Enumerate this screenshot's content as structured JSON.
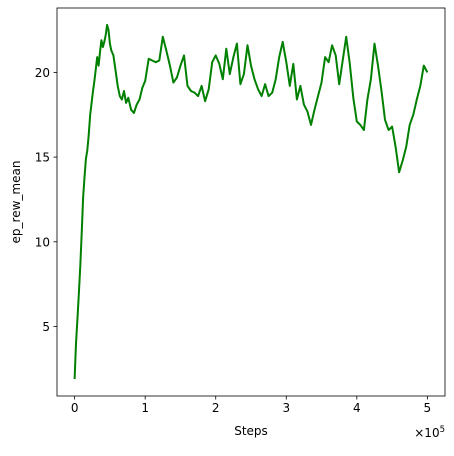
{
  "chart_data": {
    "type": "line",
    "title": "",
    "xlabel": "Steps",
    "ylabel": "ep_rew_mean",
    "x_multiplier_label": "×10",
    "x_multiplier_exp": "5",
    "xlim": [
      -0.25,
      5.25
    ],
    "ylim": [
      0.9,
      23.8
    ],
    "xticks": [
      0,
      1,
      2,
      3,
      4,
      5
    ],
    "xtick_labels": [
      "0",
      "1",
      "2",
      "3",
      "4",
      "5"
    ],
    "yticks": [
      5,
      10,
      15,
      20
    ],
    "ytick_labels": [
      "5",
      "10",
      "15",
      "20"
    ],
    "grid": false,
    "legend": "none",
    "series": [
      {
        "color": "#008000",
        "x": [
          0.0,
          0.02,
          0.04,
          0.06,
          0.08,
          0.1,
          0.12,
          0.14,
          0.16,
          0.18,
          0.2,
          0.22,
          0.24,
          0.26,
          0.28,
          0.3,
          0.32,
          0.34,
          0.36,
          0.38,
          0.4,
          0.42,
          0.44,
          0.46,
          0.48,
          0.5,
          0.52,
          0.55,
          0.58,
          0.61,
          0.64,
          0.67,
          0.7,
          0.73,
          0.76,
          0.8,
          0.84,
          0.88,
          0.92,
          0.96,
          1.0,
          1.05,
          1.1,
          1.15,
          1.2,
          1.25,
          1.3,
          1.35,
          1.4,
          1.45,
          1.5,
          1.55,
          1.6,
          1.65,
          1.7,
          1.75,
          1.8,
          1.85,
          1.9,
          1.95,
          2.0,
          2.05,
          2.1,
          2.15,
          2.2,
          2.25,
          2.3,
          2.35,
          2.4,
          2.45,
          2.5,
          2.55,
          2.6,
          2.65,
          2.7,
          2.75,
          2.8,
          2.85,
          2.9,
          2.95,
          3.0,
          3.05,
          3.1,
          3.15,
          3.2,
          3.25,
          3.3,
          3.35,
          3.4,
          3.45,
          3.5,
          3.55,
          3.6,
          3.65,
          3.7,
          3.75,
          3.8,
          3.85,
          3.9,
          3.95,
          4.0,
          4.05,
          4.1,
          4.15,
          4.2,
          4.25,
          4.3,
          4.35,
          4.4,
          4.45,
          4.5,
          4.55,
          4.6,
          4.65,
          4.7,
          4.75,
          4.8,
          4.85,
          4.9,
          4.95,
          5.0
        ],
        "y": [
          1.9,
          4.0,
          5.5,
          7.0,
          8.6,
          10.5,
          12.6,
          13.8,
          14.9,
          15.4,
          16.3,
          17.5,
          18.2,
          18.9,
          19.5,
          20.2,
          20.9,
          20.4,
          21.2,
          21.9,
          21.5,
          21.8,
          22.2,
          22.8,
          22.5,
          21.7,
          21.3,
          21.0,
          20.1,
          19.2,
          18.6,
          18.4,
          18.9,
          18.2,
          18.5,
          17.8,
          17.6,
          18.1,
          18.4,
          19.1,
          19.5,
          20.8,
          20.7,
          20.6,
          20.7,
          22.1,
          21.3,
          20.4,
          19.4,
          19.7,
          20.4,
          21.0,
          19.2,
          18.9,
          18.8,
          18.6,
          19.2,
          18.3,
          19.0,
          20.6,
          21.0,
          20.5,
          19.6,
          21.4,
          19.9,
          20.9,
          21.7,
          19.3,
          19.9,
          21.6,
          20.4,
          19.6,
          19.0,
          18.6,
          19.3,
          18.6,
          18.8,
          19.6,
          20.9,
          21.8,
          20.6,
          19.2,
          20.5,
          18.4,
          19.2,
          18.1,
          17.7,
          16.9,
          17.8,
          18.6,
          19.4,
          20.9,
          20.6,
          21.6,
          21.0,
          19.3,
          20.7,
          22.1,
          20.5,
          18.5,
          17.1,
          16.9,
          16.6,
          18.4,
          19.6,
          21.7,
          20.4,
          18.9,
          17.2,
          16.6,
          16.8,
          15.6,
          14.1,
          14.8,
          15.6,
          16.9,
          17.5,
          18.4,
          19.2,
          20.4,
          20.0
        ]
      }
    ]
  }
}
